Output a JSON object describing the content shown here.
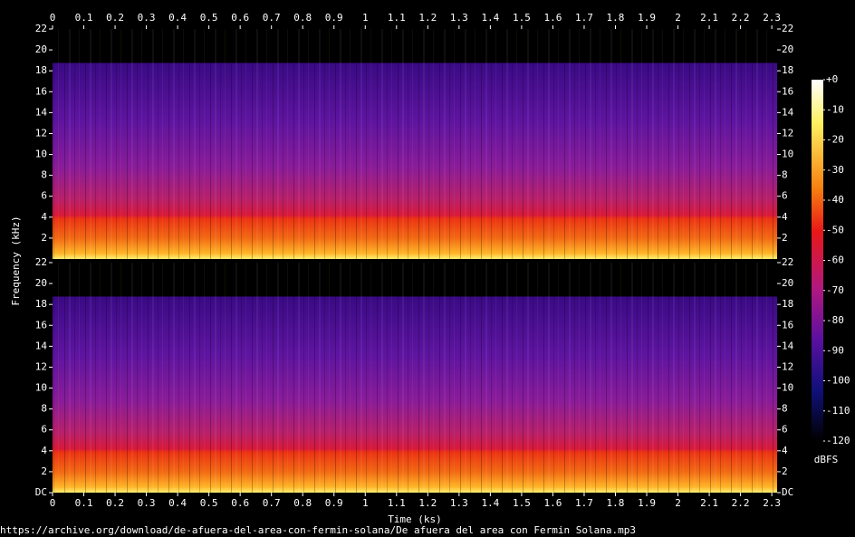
{
  "chart_data": {
    "type": "spectrogram",
    "x_label": "Time (ks)",
    "y_label": "Frequency (kHz)",
    "xlim": [
      0,
      2.317
    ],
    "xticks": [
      0,
      0.1,
      0.2,
      0.3,
      0.4,
      0.5,
      0.6,
      0.7,
      0.8,
      0.9,
      1,
      1.1,
      1.2,
      1.3,
      1.4,
      1.5,
      1.6,
      1.7,
      1.8,
      1.9,
      2,
      2.1,
      2.2,
      2.3
    ],
    "channels": [
      {
        "ylim": [
          0,
          22
        ],
        "yticks": [
          2,
          4,
          6,
          8,
          10,
          12,
          14,
          16,
          18,
          20,
          22
        ]
      },
      {
        "ylim": [
          0,
          22
        ],
        "yticks": [
          {
            "value": 0,
            "label": "DC"
          },
          2,
          4,
          6,
          8,
          10,
          12,
          14,
          16,
          18,
          20,
          22
        ]
      }
    ],
    "colorbar": {
      "label": "dBFS",
      "lim": [
        -120,
        0
      ],
      "ticks": [
        {
          "value": 0,
          "label": "+0"
        },
        -10,
        -20,
        -30,
        -40,
        -50,
        -60,
        -70,
        -80,
        -90,
        -100,
        -110,
        -120
      ]
    },
    "source": "https://archive.org/download/de-afuera-del-area-con-fermin-solana/De afuera del area con Fermin Solana.mp3"
  }
}
